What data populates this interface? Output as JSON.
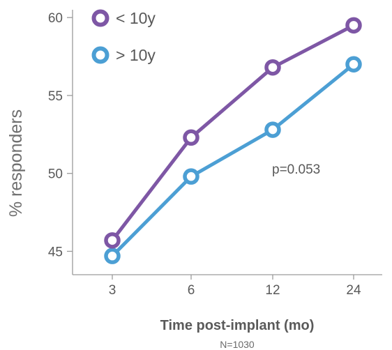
{
  "chart_data": {
    "type": "line",
    "categories": [
      "3",
      "6",
      "12",
      "24"
    ],
    "series": [
      {
        "name": "< 10y",
        "values": [
          45.7,
          52.3,
          56.8,
          59.5
        ],
        "color": "#7e57a5"
      },
      {
        "name": "> 10y",
        "values": [
          44.7,
          49.8,
          52.8,
          57.0
        ],
        "color": "#4c9fd4"
      }
    ],
    "ylim": [
      43.5,
      60.5
    ],
    "yticks": [
      "45",
      "50",
      "55",
      "60"
    ],
    "ylabel": "% responders",
    "xlabel": "Time post-implant (mo)",
    "note": "N=1030",
    "annotation": "p=0.053",
    "legend": "top-left",
    "grid": false
  }
}
